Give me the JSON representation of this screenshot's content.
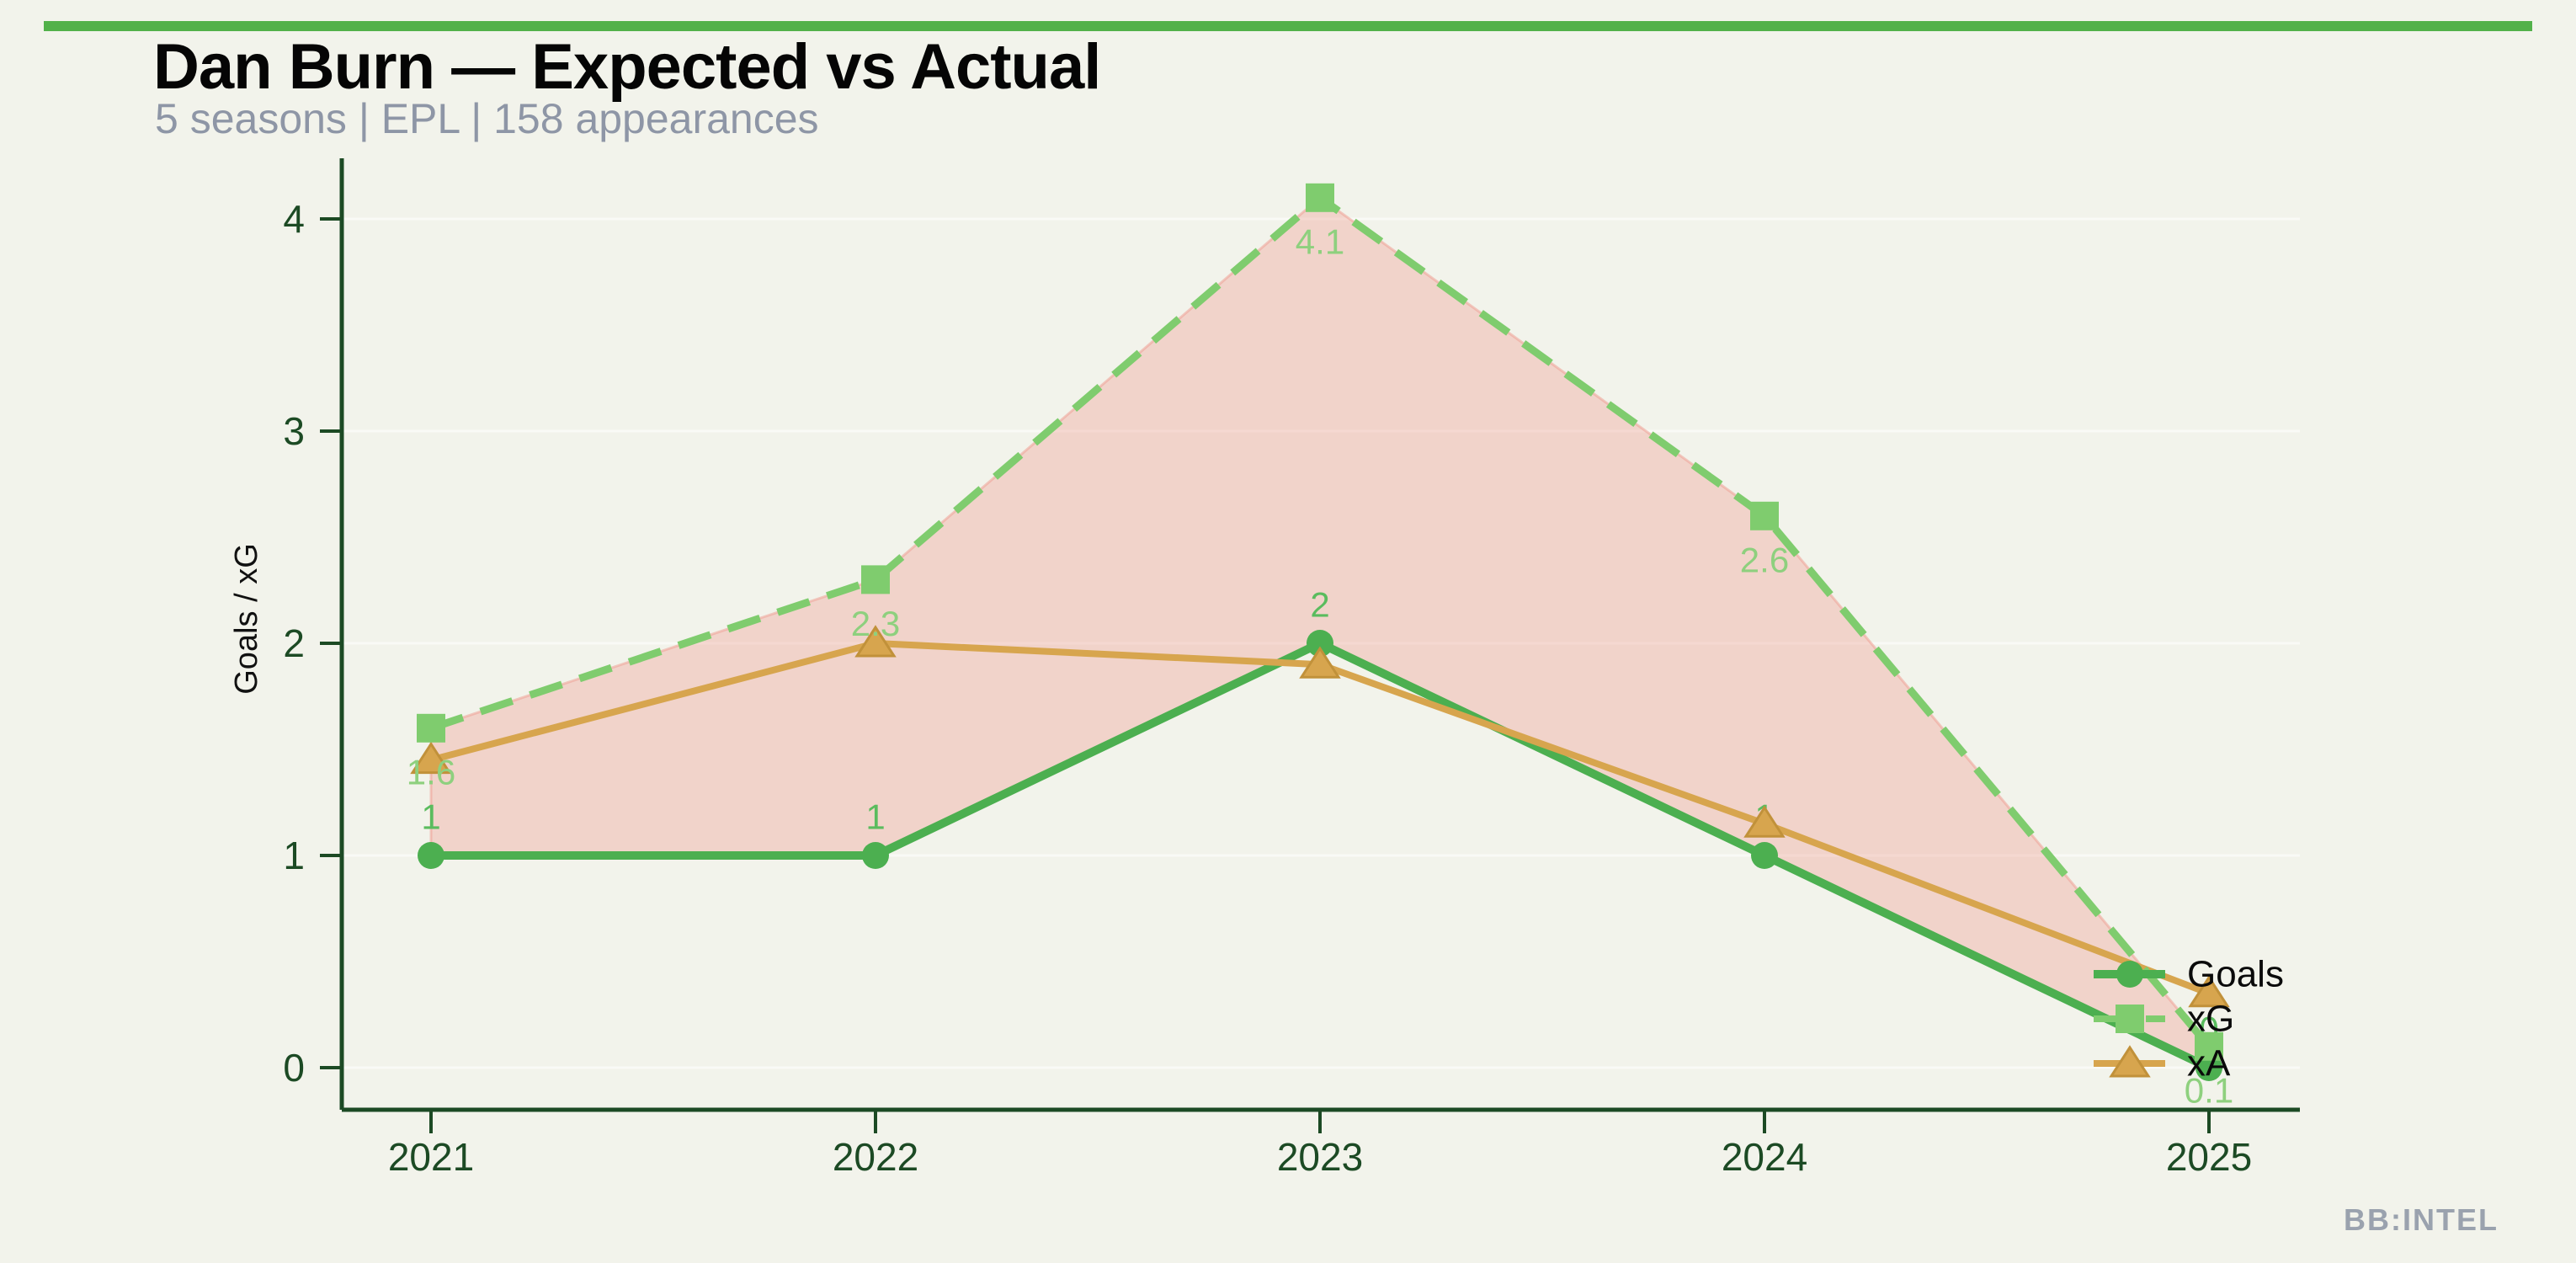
{
  "page": {
    "background_color": "#f2f3eb",
    "accent_bar_color": "#52b14a"
  },
  "header": {
    "title": "Dan Burn — Expected vs Actual",
    "subtitle": "5 seasons | EPL | 158 appearances"
  },
  "watermark": "BB:INTEL",
  "chart_data": {
    "type": "line",
    "title": "Dan Burn — Expected vs Actual",
    "x_tick_labels": [
      "2021",
      "2022",
      "2023",
      "2024",
      "2025"
    ],
    "xlabel": "",
    "ylabel": "Goals / xG",
    "yticks": [
      0,
      1,
      2,
      3,
      4
    ],
    "ytick_labels": [
      "0",
      "1",
      "2",
      "3",
      "4"
    ],
    "ylim": [
      -0.2,
      4.3
    ],
    "grid": "faint horizontal gridlines at integer y values",
    "legend_position": "inside right, stacked vertically",
    "axis_color": "#1c4a24",
    "gridline_color": "rgba(255,255,255,0.55)",
    "series": [
      {
        "name": "Goals",
        "marker": "circle",
        "line_style": "solid",
        "color": "#4caf50",
        "label_color": "#5abc5e",
        "values": [
          1,
          1,
          2,
          1,
          0
        ],
        "point_labels": [
          "1",
          "1",
          "2",
          "1",
          "0"
        ],
        "label_position": "above"
      },
      {
        "name": "xA",
        "marker": "triangle",
        "line_style": "solid",
        "color": "#d7a54e",
        "label_color": "#d7a54e",
        "values": [
          1.45,
          2.0,
          1.9,
          1.15,
          0.35
        ],
        "point_labels": [
          "",
          "",
          "",
          "",
          ""
        ],
        "label_position": "none"
      },
      {
        "name": "xG",
        "marker": "square",
        "line_style": "dashed",
        "color": "#7fcc6e",
        "label_color": "#8ed07e",
        "values": [
          1.6,
          2.3,
          4.1,
          2.6,
          0.1
        ],
        "point_labels": [
          "1.6",
          "2.3",
          "4.1",
          "2.6",
          "0.1"
        ],
        "label_position": "below"
      }
    ],
    "fill_between": {
      "upper_series": "xG",
      "lower_series": "Goals",
      "color": "rgba(238,160,150,0.38)",
      "edge_color": "rgba(238,160,150,0.55)"
    },
    "legend_order": [
      "Goals",
      "xG",
      "xA"
    ]
  }
}
